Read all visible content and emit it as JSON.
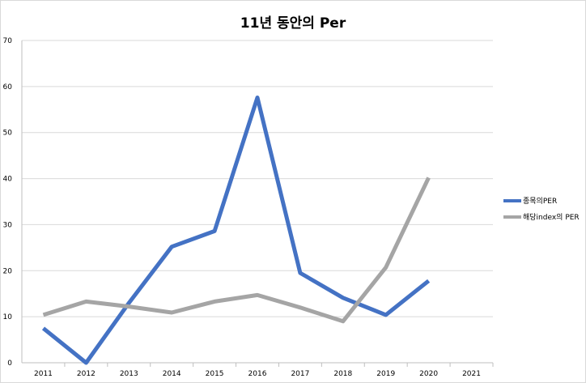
{
  "chart_data": {
    "type": "line",
    "title": "11년 동안의 Per",
    "xlabel": "",
    "ylabel": "",
    "categories": [
      "2011",
      "2012",
      "2013",
      "2014",
      "2015",
      "2016",
      "2017",
      "2018",
      "2019",
      "2020",
      "2021"
    ],
    "ylim": [
      0,
      70
    ],
    "yticks": [
      0,
      10,
      20,
      30,
      40,
      50,
      60,
      70
    ],
    "grid": true,
    "legend_position": "right",
    "series": [
      {
        "name": "종목의PER",
        "color": "#4472c4",
        "values": [
          7.5,
          0,
          13.0,
          25.2,
          28.6,
          57.6,
          19.5,
          14.1,
          10.4,
          17.8,
          null
        ]
      },
      {
        "name": "해당index의 PER",
        "color": "#a5a5a5",
        "values": [
          10.4,
          13.3,
          12.2,
          10.9,
          13.3,
          14.7,
          12.0,
          9.0,
          20.7,
          40.2,
          null
        ]
      }
    ]
  }
}
